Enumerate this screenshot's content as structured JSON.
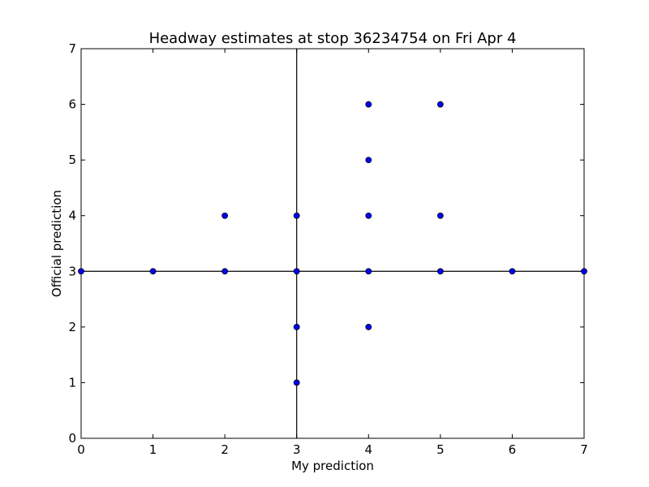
{
  "chart_data": {
    "type": "scatter",
    "title": "Headway estimates at stop 36234754 on Fri Apr 4",
    "xlabel": "My prediction",
    "ylabel": "Official prediction",
    "xlim": [
      0,
      7
    ],
    "ylim": [
      0,
      7
    ],
    "xticks": [
      "0",
      "1",
      "2",
      "3",
      "4",
      "5",
      "6",
      "7"
    ],
    "yticks": [
      "0",
      "1",
      "2",
      "3",
      "4",
      "5",
      "6",
      "7"
    ],
    "reference_lines": {
      "vertical_x": 3,
      "horizontal_y": 3
    },
    "grid": false,
    "legend": "none",
    "point_color": "#0000ff",
    "points": [
      {
        "x": 0,
        "y": 3
      },
      {
        "x": 1,
        "y": 3
      },
      {
        "x": 2,
        "y": 3
      },
      {
        "x": 2,
        "y": 4
      },
      {
        "x": 3,
        "y": 1
      },
      {
        "x": 3,
        "y": 2
      },
      {
        "x": 3,
        "y": 3
      },
      {
        "x": 3,
        "y": 4
      },
      {
        "x": 4,
        "y": 2
      },
      {
        "x": 4,
        "y": 3
      },
      {
        "x": 4,
        "y": 4
      },
      {
        "x": 4,
        "y": 5
      },
      {
        "x": 4,
        "y": 6
      },
      {
        "x": 5,
        "y": 3
      },
      {
        "x": 5,
        "y": 4
      },
      {
        "x": 5,
        "y": 6
      },
      {
        "x": 6,
        "y": 3
      },
      {
        "x": 7,
        "y": 3
      }
    ]
  }
}
